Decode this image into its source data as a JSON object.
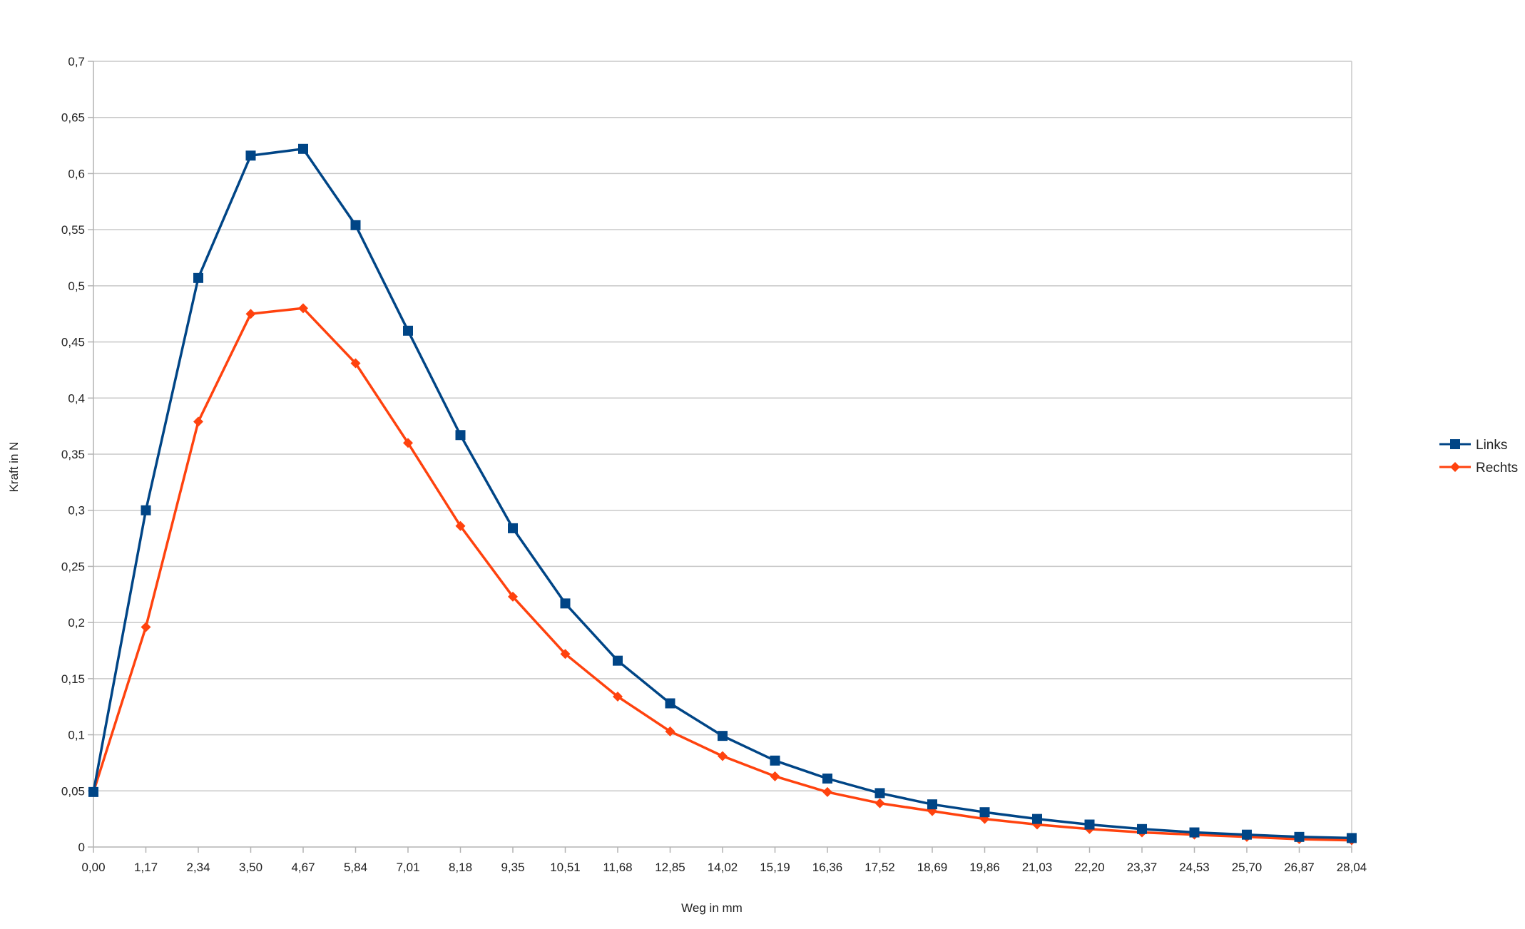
{
  "chart_data": {
    "type": "line",
    "title": "",
    "xlabel": "Weg in mm",
    "ylabel": "Kraft in N",
    "ylim": [
      0,
      0.7
    ],
    "ytick_step": 0.05,
    "yticks": [
      "0",
      "0,05",
      "0,1",
      "0,15",
      "0,2",
      "0,25",
      "0,3",
      "0,35",
      "0,4",
      "0,45",
      "0,5",
      "0,55",
      "0,6",
      "0,65",
      "0,7"
    ],
    "categories": [
      "0,00",
      "1,17",
      "2,34",
      "3,50",
      "4,67",
      "5,84",
      "7,01",
      "8,18",
      "9,35",
      "10,51",
      "11,68",
      "12,85",
      "14,02",
      "15,19",
      "16,36",
      "17,52",
      "18,69",
      "19,86",
      "21,03",
      "22,20",
      "23,37",
      "24,53",
      "25,70",
      "26,87",
      "28,04"
    ],
    "grid": true,
    "legend_position": "right",
    "series": [
      {
        "name": "Links",
        "color": "#004586",
        "marker": "square",
        "values": [
          0.049,
          0.3,
          0.507,
          0.616,
          0.622,
          0.554,
          0.46,
          0.367,
          0.284,
          0.217,
          0.166,
          0.128,
          0.099,
          0.077,
          0.061,
          0.048,
          0.038,
          0.031,
          0.025,
          0.02,
          0.016,
          0.013,
          0.011,
          0.009,
          0.008
        ]
      },
      {
        "name": "Rechts",
        "color": "#ff420e",
        "marker": "diamond",
        "values": [
          0.049,
          0.196,
          0.379,
          0.475,
          0.48,
          0.431,
          0.36,
          0.286,
          0.223,
          0.172,
          0.134,
          0.103,
          0.081,
          0.063,
          0.049,
          0.039,
          0.032,
          0.025,
          0.02,
          0.016,
          0.013,
          0.011,
          0.009,
          0.007,
          0.006
        ]
      }
    ]
  }
}
